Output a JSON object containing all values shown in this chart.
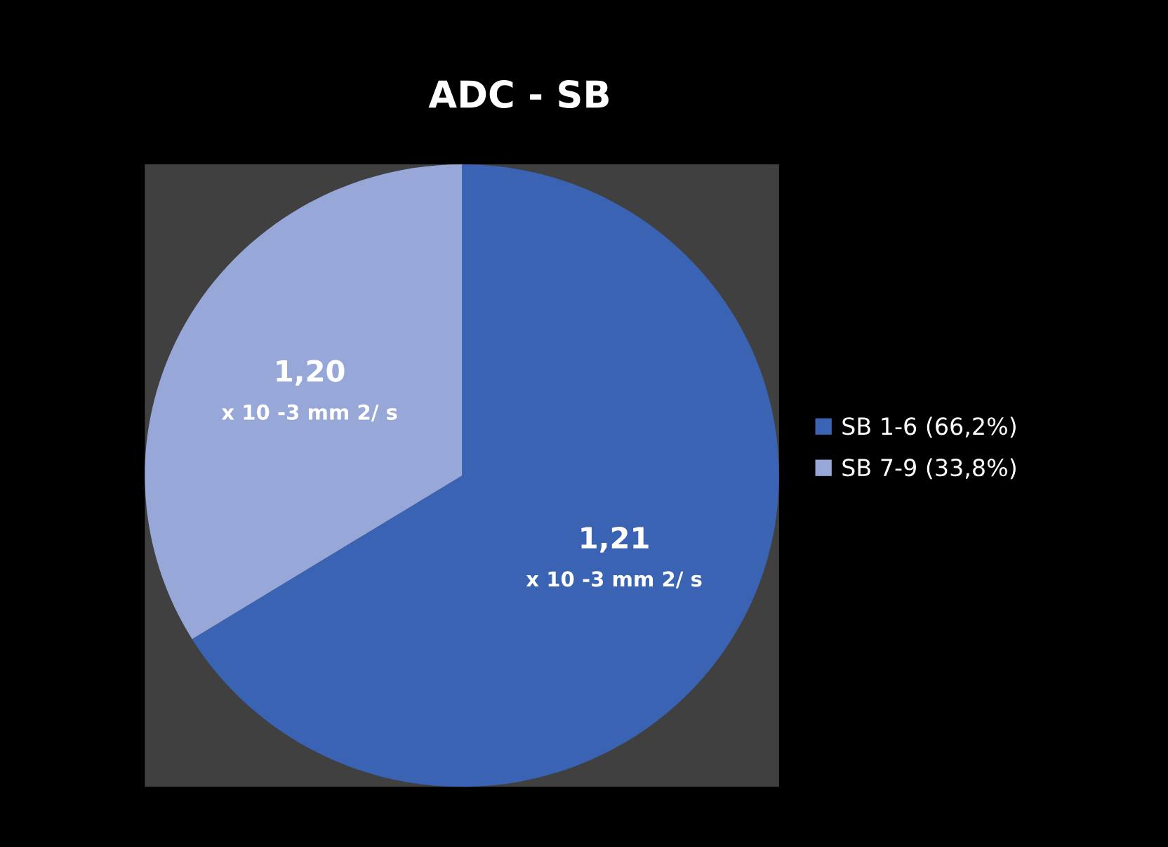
{
  "chart_data": {
    "type": "pie",
    "title": "ADC - SB",
    "categories": [
      "SB 1-6 (66,2%)",
      "SB 7-9 (33,8%)"
    ],
    "values": [
      66.2,
      33.8
    ],
    "colors": [
      "#3a63b4",
      "#97a8d8"
    ],
    "annotations": [
      "1,21\nx 10 -3 mm 2/ s",
      "1,20\nx 10 -3 mm 2/ s"
    ],
    "legend": "right"
  }
}
